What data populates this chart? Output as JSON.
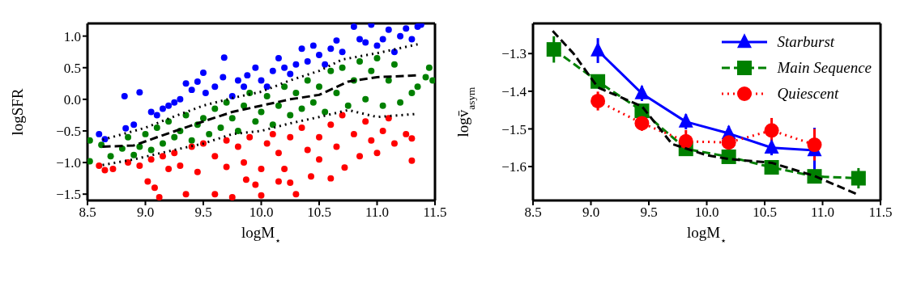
{
  "chart_data": [
    {
      "type": "scatter",
      "xlabel": "logM$_{⋆}$",
      "ylabel": "logSFR",
      "xlim": [
        8.5,
        11.5
      ],
      "xticks": [
        8.5,
        {
          "value": 9,
          "label": "9.0"
        },
        9.5,
        {
          "value": 10,
          "label": "10.0"
        },
        10.5,
        {
          "value": 11,
          "label": "11.0"
        },
        11.5
      ],
      "ylim": [
        -1.6,
        1.2
      ],
      "yticks": [
        {
          "value": -1.5,
          "label": "−1.5"
        },
        {
          "value": -1,
          "label": "−1.0"
        },
        {
          "value": -0.5,
          "label": "−0.5"
        },
        {
          "value": 0,
          "label": "0.0"
        },
        0.5,
        {
          "value": 1,
          "label": "1.0"
        }
      ],
      "series": [
        {
          "type": "scatter",
          "color": "#0000ff",
          "marker": "circle",
          "x": [
            8.6,
            8.65,
            8.83,
            8.82,
            8.95,
            8.9,
            9.05,
            9.1,
            9.15,
            9.2,
            9.25,
            9.3,
            9.35,
            9.4,
            9.45,
            9.5,
            9.52,
            9.6,
            9.68,
            9.67,
            9.75,
            9.8,
            9.85,
            9.88,
            9.95,
            10.0,
            10.05,
            10.1,
            10.15,
            10.2,
            10.25,
            10.3,
            10.35,
            10.4,
            10.45,
            10.5,
            10.55,
            10.6,
            10.65,
            10.7,
            10.8,
            10.85,
            10.9,
            10.95,
            11.0,
            11.05,
            11.1,
            11.15,
            11.2,
            11.25,
            11.3,
            11.35,
            11.38
          ],
          "values": [
            -0.55,
            -0.63,
            -0.46,
            0.05,
            0.11,
            -0.4,
            -0.2,
            -0.25,
            -0.15,
            -0.1,
            -0.05,
            0.0,
            0.25,
            0.15,
            0.28,
            0.42,
            0.1,
            0.2,
            0.66,
            0.35,
            0.05,
            0.3,
            0.2,
            0.38,
            0.5,
            0.3,
            0.2,
            0.45,
            0.65,
            0.5,
            0.4,
            0.55,
            0.8,
            0.6,
            0.85,
            0.7,
            0.55,
            0.8,
            0.93,
            0.75,
            1.15,
            0.95,
            0.9,
            1.18,
            0.85,
            0.95,
            1.1,
            0.75,
            1.0,
            1.12,
            0.95,
            1.15,
            1.18
          ]
        },
        {
          "type": "scatter",
          "color": "#008000",
          "marker": "circle",
          "x": [
            8.52,
            8.52,
            8.62,
            8.7,
            8.8,
            8.85,
            8.9,
            8.95,
            9.0,
            9.05,
            9.1,
            9.15,
            9.2,
            9.25,
            9.3,
            9.35,
            9.4,
            9.45,
            9.5,
            9.55,
            9.6,
            9.65,
            9.7,
            9.75,
            9.8,
            9.85,
            9.9,
            9.95,
            10.0,
            10.05,
            10.1,
            10.15,
            10.2,
            10.25,
            10.3,
            10.35,
            10.4,
            10.45,
            10.5,
            10.55,
            10.6,
            10.65,
            10.7,
            10.75,
            10.8,
            10.85,
            10.9,
            10.95,
            11.0,
            11.05,
            11.1,
            11.15,
            11.2,
            11.3,
            11.35,
            11.45,
            11.48,
            11.42
          ],
          "values": [
            -0.65,
            -0.98,
            -0.72,
            -0.9,
            -0.78,
            -0.6,
            -0.88,
            -0.75,
            -0.55,
            -0.8,
            -0.45,
            -0.7,
            -0.35,
            -0.6,
            -0.5,
            -0.25,
            -0.65,
            -0.4,
            -0.3,
            -0.55,
            -0.15,
            -0.45,
            -0.05,
            -0.3,
            -0.5,
            -0.1,
            0.1,
            -0.35,
            -0.2,
            0.05,
            -0.4,
            -0.1,
            0.2,
            -0.25,
            0.1,
            -0.15,
            0.3,
            -0.05,
            0.2,
            -0.2,
            0.45,
            0.1,
            0.5,
            -0.1,
            0.3,
            0.6,
            0.0,
            0.45,
            0.65,
            -0.1,
            0.3,
            0.55,
            -0.05,
            0.1,
            0.2,
            0.5,
            0.3,
            0.35
          ]
        },
        {
          "type": "scatter",
          "color": "#ff0000",
          "marker": "circle",
          "x": [
            8.6,
            8.65,
            8.72,
            8.85,
            8.95,
            9.02,
            9.05,
            9.08,
            9.12,
            9.15,
            9.2,
            9.25,
            9.3,
            9.35,
            9.4,
            9.45,
            9.5,
            9.6,
            9.6,
            9.7,
            9.7,
            9.75,
            9.8,
            9.85,
            9.87,
            9.9,
            9.95,
            10.0,
            10.0,
            10.05,
            10.1,
            10.15,
            10.15,
            10.2,
            10.25,
            10.25,
            10.3,
            10.35,
            10.4,
            10.43,
            10.5,
            10.5,
            10.6,
            10.6,
            10.65,
            10.7,
            10.72,
            10.8,
            10.85,
            10.9,
            10.95,
            11.0,
            11.05,
            11.1,
            11.15,
            11.25,
            11.3,
            11.3
          ],
          "values": [
            -1.05,
            -1.12,
            -1.1,
            -1.0,
            -1.05,
            -1.3,
            -0.95,
            -1.4,
            -1.55,
            -0.9,
            -1.1,
            -0.85,
            -1.05,
            -1.5,
            -0.75,
            -1.15,
            -0.7,
            -0.9,
            -1.5,
            -0.65,
            -1.07,
            -1.55,
            -0.75,
            -1.0,
            -1.27,
            -0.6,
            -1.35,
            -1.1,
            -1.52,
            -0.7,
            -0.55,
            -1.3,
            -0.85,
            -1.1,
            -0.6,
            -1.32,
            -1.5,
            -0.45,
            -0.8,
            -1.22,
            -0.6,
            -0.95,
            -0.4,
            -1.25,
            -0.75,
            -0.25,
            -1.08,
            -0.55,
            -0.9,
            -0.35,
            -0.65,
            -0.85,
            -0.5,
            -0.3,
            -0.7,
            -0.55,
            -0.62,
            -0.97
          ]
        },
        {
          "type": "line",
          "color": "#000000",
          "marker": "none",
          "line_style": "dotted",
          "x": [
            8.63,
            9.0,
            9.25,
            9.5,
            9.75,
            10.0,
            10.25,
            10.5,
            10.7,
            11.0,
            11.35
          ],
          "values": [
            -0.64,
            -0.45,
            -0.27,
            -0.1,
            0.02,
            0.12,
            0.3,
            0.45,
            0.63,
            0.73,
            0.87
          ]
        },
        {
          "type": "line",
          "color": "#000000",
          "marker": "none",
          "line_style": "dashed",
          "x": [
            8.63,
            8.9,
            9.1,
            9.5,
            9.75,
            10.0,
            10.25,
            10.5,
            10.75,
            11.0,
            11.35
          ],
          "values": [
            -0.75,
            -0.73,
            -0.6,
            -0.35,
            -0.2,
            -0.1,
            0.0,
            0.07,
            0.28,
            0.35,
            0.38
          ]
        },
        {
          "type": "line",
          "color": "#000000",
          "marker": "none",
          "line_style": "dotted",
          "x": [
            8.63,
            8.9,
            9.25,
            9.5,
            9.75,
            10.0,
            10.25,
            10.5,
            10.75,
            11.0,
            11.35
          ],
          "values": [
            -1.04,
            -0.95,
            -0.8,
            -0.7,
            -0.55,
            -0.5,
            -0.38,
            -0.28,
            -0.17,
            -0.28,
            -0.23
          ]
        }
      ]
    },
    {
      "type": "line",
      "xlabel": "logM$_{⋆}$",
      "ylabel": "logv̄$_{asym}$",
      "xlim": [
        8.5,
        11.5
      ],
      "xticks": [
        8.5,
        {
          "value": 9,
          "label": "9.0"
        },
        9.5,
        {
          "value": 10,
          "label": "10.0"
        },
        10.5,
        {
          "value": 11,
          "label": "11.0"
        },
        11.5
      ],
      "ylim": [
        -1.69,
        -1.22
      ],
      "yticks": [
        {
          "value": -1.6,
          "label": "−1.6"
        },
        {
          "value": -1.5,
          "label": "−1.5"
        },
        {
          "value": -1.4,
          "label": "−1.4"
        },
        {
          "value": -1.3,
          "label": "−1.3"
        }
      ],
      "legend": "top right",
      "series": [
        {
          "name": "Starburst",
          "type": "line",
          "color": "#0000ff",
          "marker": "triangle",
          "line_style": "solid",
          "x": [
            9.06,
            9.44,
            9.82,
            10.19,
            10.56,
            10.93
          ],
          "values": [
            -1.292,
            -1.406,
            -1.481,
            -1.512,
            -1.55,
            -1.557
          ],
          "errors": [
            0.033,
            0.02,
            0.02,
            0.02,
            0.02,
            0.06
          ]
        },
        {
          "name": "Main Sequence",
          "type": "line",
          "color": "#008000",
          "marker": "square",
          "line_style": "dashed",
          "x": [
            8.68,
            9.06,
            9.44,
            9.82,
            10.19,
            10.56,
            10.93,
            11.31
          ],
          "values": [
            -1.289,
            -1.374,
            -1.452,
            -1.553,
            -1.574,
            -1.602,
            -1.626,
            -1.631
          ],
          "errors": [
            0.035,
            0.01,
            0.01,
            0.01,
            0.01,
            0.01,
            0.01,
            0.027
          ]
        },
        {
          "name": "Quiescent",
          "type": "line",
          "color": "#ff0000",
          "marker": "circle",
          "line_style": "dotted",
          "x": [
            9.06,
            9.44,
            9.82,
            10.19,
            10.56,
            10.93
          ],
          "values": [
            -1.426,
            -1.485,
            -1.533,
            -1.536,
            -1.504,
            -1.542
          ],
          "errors": [
            0.025,
            0.02,
            0.03,
            0.02,
            0.033,
            0.042
          ]
        },
        {
          "type": "line",
          "color": "#000000",
          "marker": "none",
          "line_style": "dashed",
          "x": [
            8.67,
            8.85,
            9.06,
            9.44,
            9.7,
            10.0,
            10.19,
            10.56,
            10.93,
            11.31
          ],
          "values": [
            -1.24,
            -1.3,
            -1.39,
            -1.44,
            -1.54,
            -1.57,
            -1.58,
            -1.59,
            -1.625,
            -1.675
          ]
        }
      ]
    }
  ]
}
